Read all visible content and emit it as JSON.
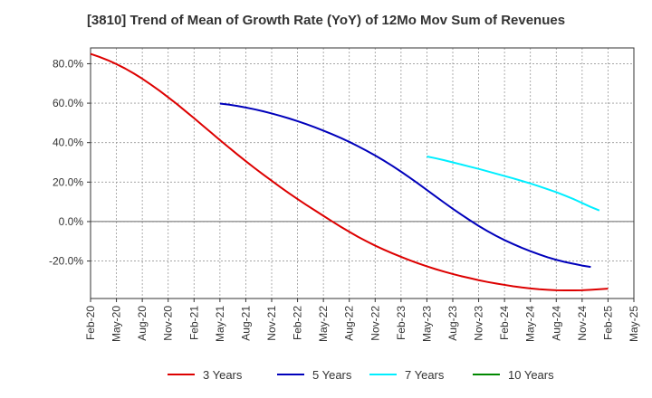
{
  "chart_data": {
    "type": "line",
    "title": "[3810]  Trend of Mean of Growth Rate (YoY) of 12Mo Mov Sum of Revenues",
    "xlabel": "",
    "ylabel": "",
    "x_tick_labels": [
      "Feb-20",
      "May-20",
      "Aug-20",
      "Nov-20",
      "Feb-21",
      "May-21",
      "Aug-21",
      "Nov-21",
      "Feb-22",
      "May-22",
      "Aug-22",
      "Nov-22",
      "Feb-23",
      "May-23",
      "Aug-23",
      "Nov-23",
      "Feb-24",
      "May-24",
      "Aug-24",
      "Nov-24",
      "Feb-25",
      "May-25"
    ],
    "y_ticks": [
      80,
      60,
      40,
      20,
      0,
      -20
    ],
    "y_tick_labels": [
      "80.0%",
      "60.0%",
      "40.0%",
      "20.0%",
      "0.0%",
      "-20.0%"
    ],
    "ylim": [
      -39,
      88
    ],
    "grid": true,
    "legend_position": "bottom",
    "series": [
      {
        "name": "3 Years",
        "color": "#dd0000",
        "start_index": 0,
        "values": [
          85,
          83.5,
          81.8,
          79.8,
          77.6,
          75.1,
          72.4,
          69.4,
          66.3,
          63,
          59.6,
          56,
          52.4,
          48.7,
          45,
          41.3,
          37.7,
          34.1,
          30.6,
          27.2,
          23.9,
          20.7,
          17.5,
          14.4,
          11.4,
          8.5,
          5.7,
          2.9,
          0.1,
          -2.6,
          -5.2,
          -7.7,
          -10,
          -12.2,
          -14.2,
          -16.1,
          -17.9,
          -19.6,
          -21.2,
          -22.7,
          -24.1,
          -25.4,
          -26.6,
          -27.7,
          -28.7,
          -29.7,
          -30.6,
          -31.4,
          -32.1,
          -32.8,
          -33.4,
          -33.9,
          -34.3,
          -34.6,
          -34.8,
          -34.9,
          -34.9,
          -34.8,
          -34.6,
          -34.3,
          -34
        ]
      },
      {
        "name": "5 Years",
        "color": "#0000bb",
        "start_index": 15,
        "values": [
          59.8,
          59.3,
          58.6,
          57.8,
          56.9,
          55.9,
          54.8,
          53.6,
          52.3,
          50.9,
          49.4,
          47.8,
          46.1,
          44.3,
          42.4,
          40.4,
          38.2,
          35.9,
          33.5,
          30.9,
          28.2,
          25.3,
          22.3,
          19.2,
          16,
          12.8,
          9.6,
          6.5,
          3.5,
          0.6,
          -2.2,
          -4.8,
          -7.2,
          -9.4,
          -11.4,
          -13.3,
          -15,
          -16.6,
          -18.1,
          -19.4,
          -20.5,
          -21.4,
          -22.3,
          -23
        ]
      },
      {
        "name": "7 Years",
        "color": "#00eeff",
        "start_index": 39,
        "values": [
          33,
          32.1,
          31.1,
          30,
          28.9,
          27.8,
          26.7,
          25.5,
          24.3,
          23.1,
          21.9,
          20.6,
          19.3,
          17.9,
          16.4,
          14.9,
          13.2,
          11.4,
          9.4,
          7.4,
          5.6
        ]
      },
      {
        "name": "10 Years",
        "color": "#008800",
        "start_index": 60,
        "values": []
      }
    ]
  }
}
